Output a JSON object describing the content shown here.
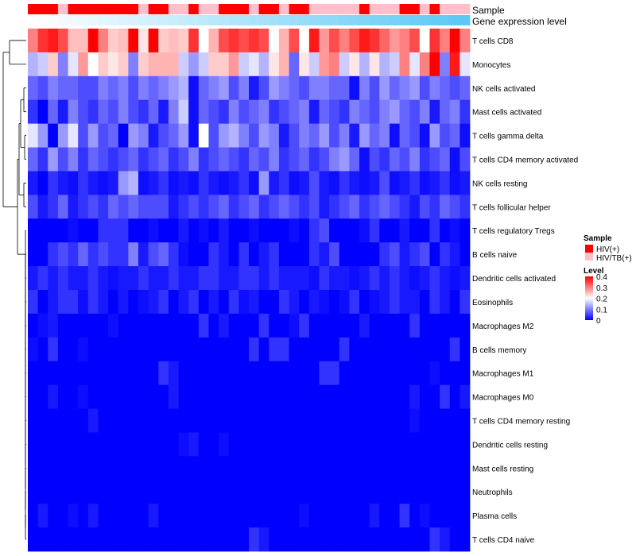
{
  "chart_data": {
    "type": "heatmap",
    "title": "",
    "n_columns": 44,
    "rows": [
      "T cells CD8",
      "Monocytes",
      "NK cells activated",
      "Mast cells activated",
      "T cells gamma delta",
      "T cells CD4 memory activated",
      "NK cells resting",
      "T cells follicular helper",
      "T cells regulatory  Tregs",
      "B cells naive",
      "Dendritic cells activated",
      "Eosinophils",
      "Macrophages M2",
      "B cells memory",
      "Macrophages M1",
      "Macrophages M0",
      "T cells CD4 memory resting",
      "Dendritic cells resting",
      "Mast cells resting",
      "Neutrophils",
      "Plasma cells",
      "T cells CD4 naive"
    ],
    "values": [
      [
        0.3,
        0.36,
        0.38,
        0.34,
        0.25,
        0.25,
        0.4,
        0.3,
        0.24,
        0.25,
        0.4,
        0.22,
        0.4,
        0.24,
        0.25,
        0.24,
        0.36,
        0.2,
        0.26,
        0.34,
        0.36,
        0.34,
        0.36,
        0.34,
        0.2,
        0.26,
        0.34,
        0.2,
        0.38,
        0.28,
        0.34,
        0.3,
        0.34,
        0.38,
        0.36,
        0.32,
        0.28,
        0.3,
        0.34,
        0.2,
        0.36,
        0.3,
        0.4,
        0.3
      ],
      [
        0.14,
        0.16,
        0.24,
        0.1,
        0.18,
        0.28,
        0.2,
        0.24,
        0.22,
        0.24,
        0.1,
        0.24,
        0.26,
        0.26,
        0.26,
        0.16,
        0.12,
        0.16,
        0.24,
        0.24,
        0.28,
        0.16,
        0.18,
        0.14,
        0.22,
        0.26,
        0.08,
        0.22,
        0.16,
        0.28,
        0.3,
        0.16,
        0.22,
        0.14,
        0.22,
        0.14,
        0.16,
        0.3,
        0.18,
        0.3,
        0.4,
        0.1,
        0.38,
        0.18
      ],
      [
        0.08,
        0.06,
        0.1,
        0.08,
        0.08,
        0.06,
        0.06,
        0.1,
        0.08,
        0.1,
        0.06,
        0.1,
        0.08,
        0.1,
        0.12,
        0.14,
        0.01,
        0.08,
        0.1,
        0.12,
        0.06,
        0.1,
        0.02,
        0.06,
        0.12,
        0.1,
        0.08,
        0.06,
        0.1,
        0.1,
        0.08,
        0.08,
        0.01,
        0.1,
        0.06,
        0.12,
        0.08,
        0.1,
        0.12,
        0.06,
        0.1,
        0.08,
        0.06,
        0.08
      ],
      [
        0.04,
        0.0,
        0.08,
        0.02,
        0.1,
        0.06,
        0.04,
        0.08,
        0.06,
        0.1,
        0.06,
        0.04,
        0.08,
        0.02,
        0.1,
        0.16,
        0.01,
        0.08,
        0.06,
        0.04,
        0.1,
        0.06,
        0.08,
        0.1,
        0.04,
        0.06,
        0.08,
        0.1,
        0.02,
        0.08,
        0.06,
        0.04,
        0.1,
        0.08,
        0.06,
        0.1,
        0.12,
        0.08,
        0.06,
        0.1,
        0.02,
        0.08,
        0.1,
        0.04
      ],
      [
        0.18,
        0.12,
        0.0,
        0.12,
        0.18,
        0.06,
        0.12,
        0.06,
        0.08,
        0.0,
        0.12,
        0.1,
        0.02,
        0.06,
        0.08,
        0.12,
        0.01,
        0.2,
        0.06,
        0.12,
        0.14,
        0.1,
        0.06,
        0.12,
        0.1,
        0.02,
        0.06,
        0.1,
        0.08,
        0.12,
        0.06,
        0.1,
        0.02,
        0.12,
        0.08,
        0.1,
        0.01,
        0.08,
        0.06,
        0.01,
        0.12,
        0.06,
        0.08,
        0.01
      ],
      [
        0.08,
        0.04,
        0.12,
        0.06,
        0.1,
        0.04,
        0.08,
        0.06,
        0.04,
        0.06,
        0.08,
        0.04,
        0.06,
        0.08,
        0.04,
        0.06,
        0.1,
        0.04,
        0.06,
        0.08,
        0.06,
        0.04,
        0.08,
        0.06,
        0.1,
        0.04,
        0.06,
        0.08,
        0.04,
        0.06,
        0.1,
        0.12,
        0.08,
        0.01,
        0.06,
        0.04,
        0.08,
        0.06,
        0.1,
        0.04,
        0.06,
        0.08,
        0.01,
        0.06
      ],
      [
        0.02,
        0.0,
        0.04,
        0.02,
        0.01,
        0.04,
        0.02,
        0.01,
        0.02,
        0.12,
        0.14,
        0.01,
        0.02,
        0.04,
        0.01,
        0.02,
        0.01,
        0.04,
        0.02,
        0.01,
        0.02,
        0.04,
        0.01,
        0.12,
        0.02,
        0.04,
        0.01,
        0.02,
        0.06,
        0.02,
        0.01,
        0.04,
        0.02,
        0.01,
        0.02,
        0.06,
        0.01,
        0.02,
        0.04,
        0.01,
        0.02,
        0.04,
        0.01,
        0.02
      ],
      [
        0.06,
        0.02,
        0.04,
        0.08,
        0.02,
        0.04,
        0.06,
        0.04,
        0.08,
        0.06,
        0.08,
        0.06,
        0.06,
        0.06,
        0.02,
        0.04,
        0.06,
        0.04,
        0.06,
        0.08,
        0.04,
        0.06,
        0.08,
        0.04,
        0.06,
        0.08,
        0.06,
        0.04,
        0.06,
        0.02,
        0.04,
        0.06,
        0.08,
        0.04,
        0.06,
        0.08,
        0.06,
        0.04,
        0.02,
        0.06,
        0.04,
        0.08,
        0.06,
        0.04
      ],
      [
        0.0,
        0.0,
        0.0,
        0.0,
        0.01,
        0.0,
        0.0,
        0.04,
        0.04,
        0.04,
        0.0,
        0.0,
        0.01,
        0.0,
        0.0,
        0.02,
        0.0,
        0.01,
        0.0,
        0.02,
        0.0,
        0.0,
        0.01,
        0.0,
        0.0,
        0.0,
        0.01,
        0.0,
        0.04,
        0.06,
        0.0,
        0.0,
        0.0,
        0.01,
        0.04,
        0.0,
        0.0,
        0.02,
        0.0,
        0.0,
        0.04,
        0.0,
        0.01,
        0.0
      ],
      [
        0.0,
        0.0,
        0.04,
        0.06,
        0.04,
        0.08,
        0.04,
        0.06,
        0.04,
        0.04,
        0.1,
        0.02,
        0.06,
        0.08,
        0.04,
        0.01,
        0.0,
        0.0,
        0.04,
        0.02,
        0.0,
        0.04,
        0.0,
        0.02,
        0.04,
        0.0,
        0.0,
        0.0,
        0.04,
        0.02,
        0.06,
        0.0,
        0.0,
        0.0,
        0.0,
        0.04,
        0.06,
        0.02,
        0.04,
        0.06,
        0.0,
        0.04,
        0.02,
        0.0
      ],
      [
        0.02,
        0.04,
        0.02,
        0.04,
        0.02,
        0.02,
        0.04,
        0.02,
        0.01,
        0.02,
        0.02,
        0.04,
        0.02,
        0.02,
        0.04,
        0.02,
        0.02,
        0.04,
        0.04,
        0.02,
        0.02,
        0.04,
        0.04,
        0.02,
        0.04,
        0.02,
        0.02,
        0.02,
        0.01,
        0.04,
        0.02,
        0.02,
        0.01,
        0.02,
        0.04,
        0.02,
        0.04,
        0.02,
        0.01,
        0.02,
        0.04,
        0.02,
        0.01,
        0.02
      ],
      [
        0.04,
        0.0,
        0.02,
        0.04,
        0.04,
        0.01,
        0.04,
        0.02,
        0.0,
        0.02,
        0.0,
        0.01,
        0.02,
        0.04,
        0.0,
        0.02,
        0.04,
        0.0,
        0.02,
        0.0,
        0.04,
        0.01,
        0.02,
        0.0,
        0.0,
        0.04,
        0.02,
        0.0,
        0.02,
        0.01,
        0.0,
        0.01,
        0.04,
        0.0,
        0.01,
        0.02,
        0.04,
        0.02,
        0.02,
        0.0,
        0.04,
        0.02,
        0.0,
        0.04
      ],
      [
        0.0,
        0.01,
        0.02,
        0.0,
        0.0,
        0.0,
        0.0,
        0.0,
        0.01,
        0.0,
        0.0,
        0.0,
        0.0,
        0.0,
        0.0,
        0.0,
        0.0,
        0.04,
        0.0,
        0.02,
        0.0,
        0.0,
        0.0,
        0.04,
        0.0,
        0.0,
        0.01,
        0.04,
        0.0,
        0.0,
        0.0,
        0.0,
        0.0,
        0.02,
        0.0,
        0.0,
        0.0,
        0.0,
        0.04,
        0.0,
        0.0,
        0.0,
        0.0,
        0.0
      ],
      [
        0.01,
        0.0,
        0.04,
        0.0,
        0.0,
        0.01,
        0.0,
        0.0,
        0.0,
        0.0,
        0.0,
        0.0,
        0.0,
        0.0,
        0.0,
        0.0,
        0.0,
        0.0,
        0.0,
        0.0,
        0.0,
        0.0,
        0.04,
        0.0,
        0.04,
        0.04,
        0.0,
        0.0,
        0.0,
        0.0,
        0.0,
        0.04,
        0.0,
        0.0,
        0.0,
        0.0,
        0.0,
        0.0,
        0.0,
        0.0,
        0.0,
        0.0,
        0.04,
        0.0
      ],
      [
        0.0,
        0.0,
        0.0,
        0.0,
        0.0,
        0.0,
        0.0,
        0.0,
        0.0,
        0.0,
        0.0,
        0.0,
        0.0,
        0.04,
        0.02,
        0.0,
        0.0,
        0.0,
        0.0,
        0.0,
        0.0,
        0.0,
        0.0,
        0.0,
        0.0,
        0.0,
        0.0,
        0.0,
        0.0,
        0.04,
        0.04,
        0.0,
        0.0,
        0.0,
        0.0,
        0.0,
        0.0,
        0.0,
        0.0,
        0.0,
        0.01,
        0.0,
        0.0,
        0.0
      ],
      [
        0.0,
        0.0,
        0.02,
        0.0,
        0.0,
        0.01,
        0.0,
        0.0,
        0.0,
        0.0,
        0.0,
        0.0,
        0.0,
        0.0,
        0.02,
        0.0,
        0.0,
        0.0,
        0.0,
        0.0,
        0.0,
        0.0,
        0.0,
        0.0,
        0.0,
        0.0,
        0.0,
        0.0,
        0.0,
        0.0,
        0.0,
        0.0,
        0.0,
        0.0,
        0.0,
        0.0,
        0.0,
        0.0,
        0.02,
        0.0,
        0.0,
        0.04,
        0.0,
        0.02
      ],
      [
        0.0,
        0.0,
        0.0,
        0.0,
        0.0,
        0.0,
        0.02,
        0.0,
        0.0,
        0.0,
        0.0,
        0.0,
        0.0,
        0.0,
        0.0,
        0.0,
        0.0,
        0.0,
        0.0,
        0.0,
        0.0,
        0.0,
        0.0,
        0.0,
        0.0,
        0.0,
        0.0,
        0.0,
        0.0,
        0.0,
        0.0,
        0.0,
        0.0,
        0.0,
        0.0,
        0.0,
        0.0,
        0.0,
        0.01,
        0.0,
        0.0,
        0.0,
        0.0,
        0.0
      ],
      [
        0.0,
        0.0,
        0.0,
        0.0,
        0.0,
        0.0,
        0.0,
        0.0,
        0.0,
        0.0,
        0.0,
        0.0,
        0.0,
        0.0,
        0.0,
        0.01,
        0.02,
        0.0,
        0.0,
        0.01,
        0.0,
        0.0,
        0.0,
        0.0,
        0.0,
        0.0,
        0.0,
        0.0,
        0.0,
        0.0,
        0.0,
        0.0,
        0.0,
        0.0,
        0.0,
        0.0,
        0.0,
        0.0,
        0.0,
        0.0,
        0.0,
        0.0,
        0.0,
        0.0
      ],
      [
        0.0,
        0.0,
        0.0,
        0.0,
        0.0,
        0.0,
        0.0,
        0.0,
        0.0,
        0.0,
        0.0,
        0.0,
        0.0,
        0.0,
        0.0,
        0.0,
        0.0,
        0.0,
        0.0,
        0.0,
        0.0,
        0.0,
        0.0,
        0.0,
        0.0,
        0.0,
        0.0,
        0.0,
        0.0,
        0.0,
        0.0,
        0.0,
        0.0,
        0.0,
        0.0,
        0.0,
        0.0,
        0.0,
        0.0,
        0.0,
        0.0,
        0.0,
        0.0,
        0.0
      ],
      [
        0.0,
        0.0,
        0.0,
        0.0,
        0.0,
        0.0,
        0.0,
        0.0,
        0.0,
        0.0,
        0.0,
        0.0,
        0.0,
        0.0,
        0.0,
        0.0,
        0.0,
        0.0,
        0.0,
        0.0,
        0.0,
        0.0,
        0.0,
        0.0,
        0.0,
        0.0,
        0.0,
        0.0,
        0.0,
        0.0,
        0.0,
        0.0,
        0.0,
        0.0,
        0.0,
        0.0,
        0.0,
        0.0,
        0.0,
        0.0,
        0.0,
        0.0,
        0.0,
        0.0
      ],
      [
        0.0,
        0.02,
        0.0,
        0.0,
        0.01,
        0.0,
        0.02,
        0.0,
        0.0,
        0.0,
        0.0,
        0.0,
        0.02,
        0.0,
        0.0,
        0.0,
        0.0,
        0.0,
        0.0,
        0.0,
        0.0,
        0.0,
        0.0,
        0.0,
        0.0,
        0.0,
        0.0,
        0.01,
        0.0,
        0.0,
        0.0,
        0.0,
        0.0,
        0.0,
        0.02,
        0.0,
        0.0,
        0.04,
        0.0,
        0.01,
        0.0,
        0.0,
        0.0,
        0.0
      ],
      [
        0.0,
        0.0,
        0.0,
        0.0,
        0.0,
        0.0,
        0.0,
        0.0,
        0.0,
        0.0,
        0.0,
        0.0,
        0.0,
        0.0,
        0.0,
        0.0,
        0.0,
        0.0,
        0.0,
        0.0,
        0.0,
        0.0,
        0.04,
        0.02,
        0.0,
        0.0,
        0.0,
        0.0,
        0.0,
        0.0,
        0.0,
        0.0,
        0.0,
        0.0,
        0.0,
        0.0,
        0.0,
        0.0,
        0.0,
        0.0,
        0.04,
        0.02,
        0.0,
        0.0
      ]
    ],
    "column_annotations": {
      "sample_label": "Sample",
      "gene_expression_label": "Gene expression level",
      "sample_groups": [
        "HIV(+)",
        "HIV(+)",
        "HIV(+)",
        "HIV/TB(+)",
        "HIV(+)",
        "HIV(+)",
        "HIV(+)",
        "HIV(+)",
        "HIV(+)",
        "HIV(+)",
        "HIV(+)",
        "HIV/TB(+)",
        "HIV(+)",
        "HIV(+)",
        "HIV/TB(+)",
        "HIV/TB(+)",
        "HIV(+)",
        "HIV/TB(+)",
        "HIV/TB(+)",
        "HIV(+)",
        "HIV(+)",
        "HIV(+)",
        "HIV/TB(+)",
        "HIV(+)",
        "HIV(+)",
        "HIV/TB(+)",
        "HIV(+)",
        "HIV(+)",
        "HIV/TB(+)",
        "HIV/TB(+)",
        "HIV/TB(+)",
        "HIV/TB(+)",
        "HIV/TB(+)",
        "HIV(+)",
        "HIV/TB(+)",
        "HIV/TB(+)",
        "HIV/TB(+)",
        "HIV(+)",
        "HIV(+)",
        "HIV/TB(+)",
        "HIV(+)",
        "HIV/TB(+)",
        "HIV/TB(+)",
        "HIV/TB(+)"
      ],
      "gene_expression_range": [
        0,
        1
      ]
    },
    "legend": {
      "sample_title": "Sample",
      "sample_entries": [
        {
          "label": "HIV(+)",
          "color": "#ff0000"
        },
        {
          "label": "HIV/TB(+)",
          "color": "#ffc0cb"
        }
      ],
      "level_title": "Level",
      "level_ticks": [
        "0.4",
        "0.3",
        "0.2",
        "0.1",
        "0"
      ],
      "level_tick_values": [
        0.4,
        0.3,
        0.2,
        0.1,
        0
      ],
      "level_range": [
        0,
        0.4
      ]
    },
    "colors": {
      "low": "#0000ff",
      "mid": "#ffffff",
      "high": "#ff0000",
      "mid_value": 0.2,
      "gene_expr_low": "#ffffff",
      "gene_expr_high": "#5bc8f5"
    }
  }
}
